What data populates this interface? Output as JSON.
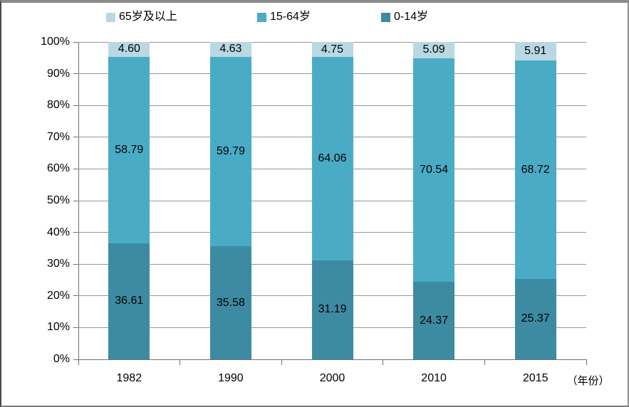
{
  "legend": {
    "items": [
      {
        "label": "65岁及以上",
        "color": "#b9d8e3"
      },
      {
        "label": "15-64岁",
        "color": "#4aabc6"
      },
      {
        "label": "0-14岁",
        "color": "#3d8ba2"
      }
    ]
  },
  "chart_data": {
    "type": "bar",
    "stacked": true,
    "stacked_total": 100,
    "title": "",
    "xlabel": "（年份）",
    "ylabel": "",
    "ylim": [
      0,
      100
    ],
    "y_tick_step": 10,
    "y_tick_labels": [
      "0%",
      "10%",
      "20%",
      "30%",
      "40%",
      "50%",
      "60%",
      "70%",
      "80%",
      "90%",
      "100%"
    ],
    "grid": true,
    "legend_position": "top",
    "categories": [
      "1982",
      "1990",
      "2000",
      "2010",
      "2015"
    ],
    "series": [
      {
        "name": "0-14岁",
        "color": "#3d8ba2",
        "values": [
          36.61,
          35.58,
          31.19,
          24.37,
          25.37
        ],
        "labels": [
          "36.61",
          "35.58",
          "31.19",
          "24.37",
          "25.37"
        ]
      },
      {
        "name": "15-64岁",
        "color": "#4aabc6",
        "values": [
          58.79,
          59.79,
          64.06,
          70.54,
          68.72
        ],
        "labels": [
          "58.79",
          "59.79",
          "64.06",
          "70.54",
          "68.72"
        ]
      },
      {
        "name": "65岁及以上",
        "color": "#b9d8e3",
        "values": [
          4.6,
          4.63,
          4.75,
          5.09,
          5.91
        ],
        "labels": [
          "4.60",
          "4.63",
          "4.75",
          "5.09",
          "5.91"
        ]
      }
    ]
  },
  "colors": {
    "gridline": "#969696",
    "axis": "#6f6f6f"
  }
}
